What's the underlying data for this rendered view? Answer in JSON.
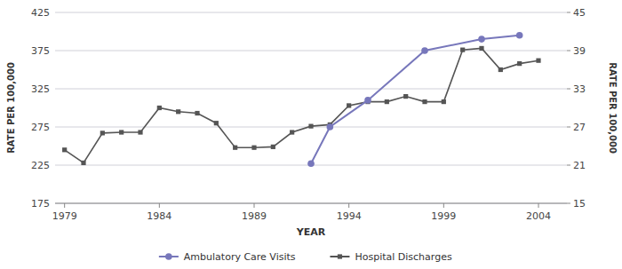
{
  "chart_data": {
    "type": "line",
    "xlabel": "YEAR",
    "ylabel": "RATE PER 100,000",
    "y2label": "RATE PER 100,000",
    "xlim": [
      1978.5,
      2005.5
    ],
    "xticks": [
      1979,
      1984,
      1989,
      1994,
      1999,
      2004
    ],
    "ylim": [
      175,
      425
    ],
    "yticks": [
      175,
      225,
      275,
      325,
      375,
      425
    ],
    "y2lim": [
      15,
      45
    ],
    "y2ticks": [
      15,
      21,
      27,
      33,
      39,
      45
    ],
    "grid": true,
    "legend": "bottom",
    "series": [
      {
        "name": "Ambulatory Care Visits",
        "color": "#7777bb",
        "marker": "circle",
        "x": [
          1992,
          1993,
          1995,
          1998,
          2001,
          2003
        ],
        "values": [
          227,
          275,
          310,
          375,
          390,
          395
        ]
      },
      {
        "name": "Hospital Discharges",
        "color": "#555555",
        "marker": "square",
        "x": [
          1979,
          1980,
          1981,
          1982,
          1983,
          1984,
          1985,
          1986,
          1987,
          1988,
          1989,
          1990,
          1991,
          1992,
          1993,
          1994,
          1995,
          1996,
          1997,
          1998,
          1999,
          2000,
          2001,
          2002,
          2003,
          2004
        ],
        "values": [
          245,
          228,
          267,
          268,
          268,
          300,
          295,
          293,
          280,
          248,
          248,
          249,
          268,
          276,
          278,
          303,
          308,
          308,
          315,
          308,
          308,
          376,
          378,
          350,
          358,
          362
        ]
      }
    ]
  }
}
